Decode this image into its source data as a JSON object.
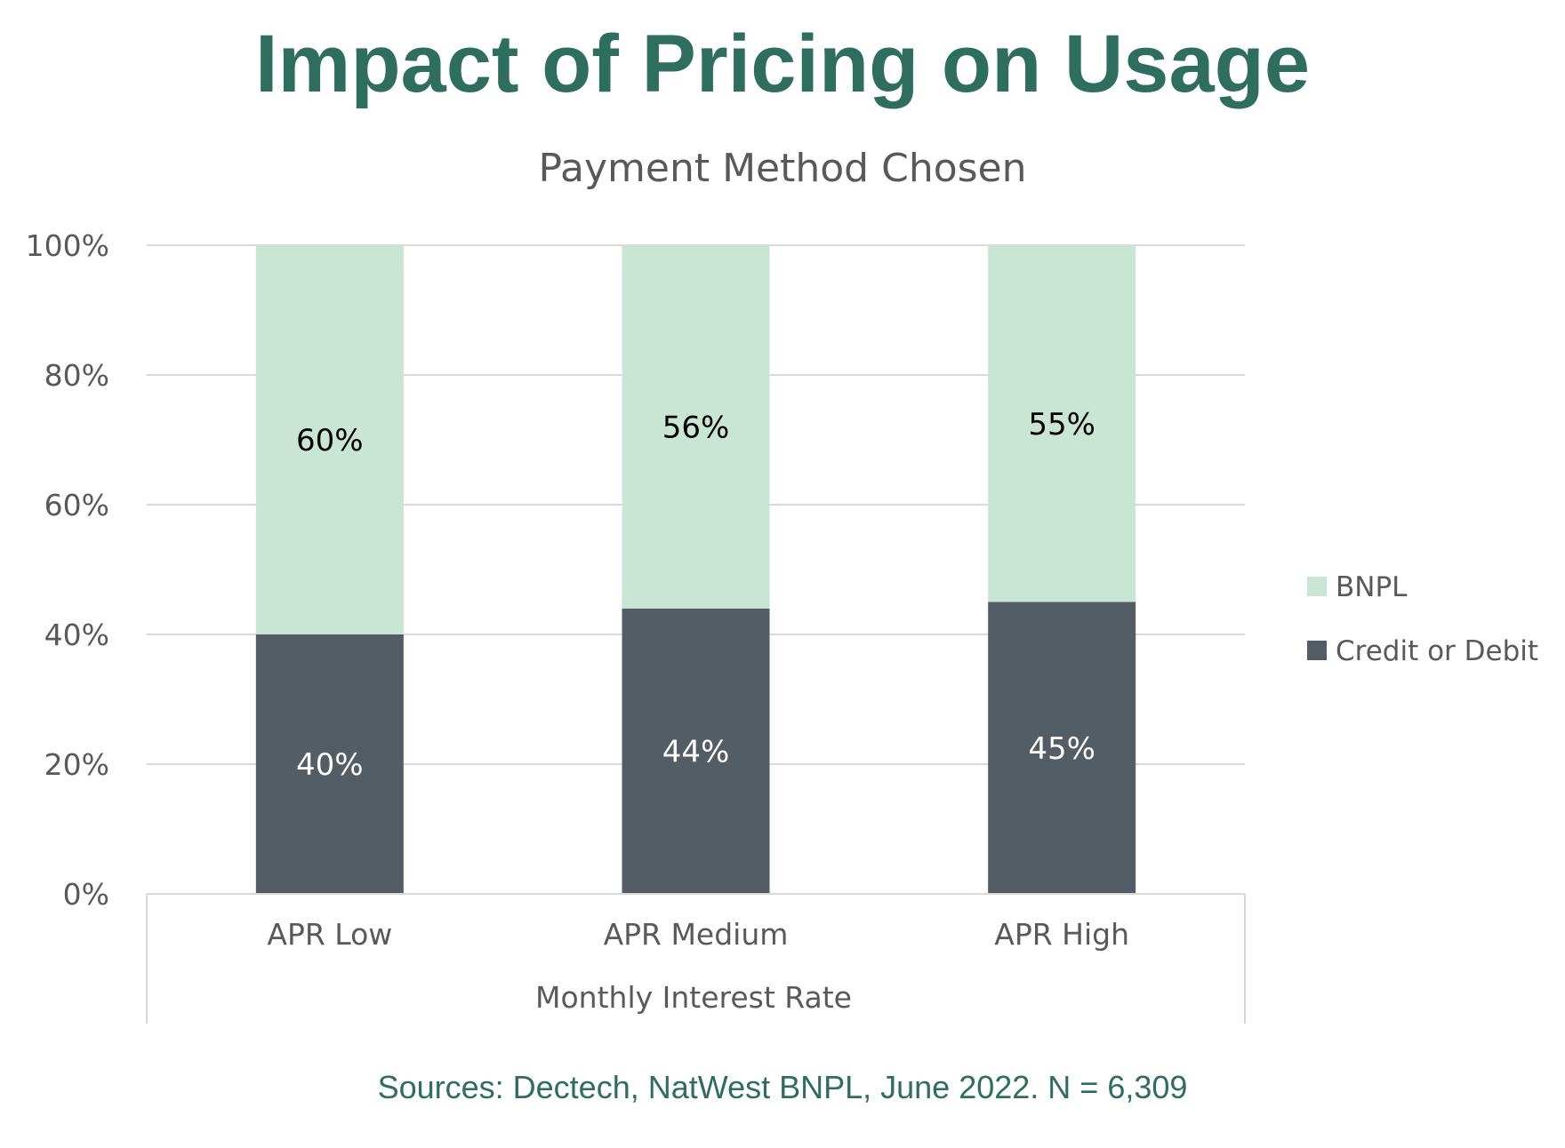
{
  "title": "Impact of Pricing on Usage",
  "source_note": "Sources: Dectech, NatWest BNPL, June 2022. N = 6,309",
  "colors": {
    "title": "#2e6e5e",
    "source_note": "#2e6e5e",
    "bnpl": "#c9e6d4",
    "credit_or_debit": "#525d66",
    "axis_text": "#595959",
    "gridline": "#d9d9d9",
    "label_dark": "#000000",
    "label_light": "#ffffff"
  },
  "chart_data": {
    "type": "bar",
    "stacked": true,
    "title": "Payment Method Chosen",
    "xlabel": "Monthly Interest Rate",
    "ylabel": "",
    "categories": [
      "APR Low",
      "APR Medium",
      "APR High"
    ],
    "series": [
      {
        "name": "Credit or Debit",
        "values": [
          40,
          44,
          45
        ],
        "labels": [
          "40%",
          "44%",
          "45%"
        ]
      },
      {
        "name": "BNPL",
        "values": [
          60,
          56,
          55
        ],
        "labels": [
          "60%",
          "56%",
          "55%"
        ]
      }
    ],
    "ylim": [
      0,
      100
    ],
    "yticks": [
      0,
      20,
      40,
      60,
      80,
      100
    ],
    "ytick_labels": [
      "0%",
      "20%",
      "40%",
      "60%",
      "80%",
      "100%"
    ],
    "grid": true,
    "legend": {
      "position": "right",
      "entries": [
        "BNPL",
        "Credit or Debit"
      ]
    }
  }
}
